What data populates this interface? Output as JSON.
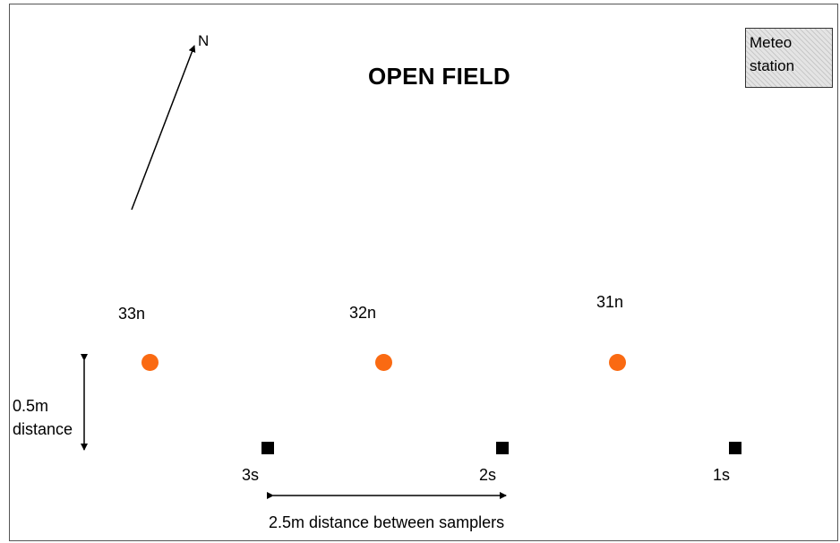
{
  "diagram": {
    "title": "OPEN FIELD",
    "north_label": "N",
    "meteo_station": {
      "line1": "Meteo",
      "line2": "station"
    },
    "samplers_n": [
      {
        "label": "33n",
        "color": "#fa6a12"
      },
      {
        "label": "32n",
        "color": "#fa6a12"
      },
      {
        "label": "31n",
        "color": "#fa6a12"
      }
    ],
    "samplers_s": [
      {
        "label": "3s",
        "color": "#000000"
      },
      {
        "label": "2s",
        "color": "#000000"
      },
      {
        "label": "1s",
        "color": "#000000"
      }
    ],
    "vertical_distance": {
      "line1": "0.5m",
      "line2": "distance"
    },
    "horizontal_distance": "2.5m distance between samplers"
  }
}
